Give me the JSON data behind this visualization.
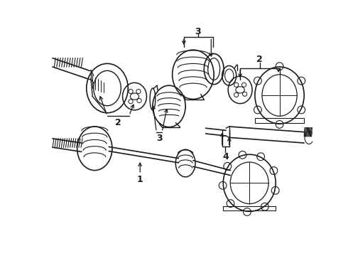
{
  "background_color": "#ffffff",
  "line_color": "#1a1a1a",
  "lw": 1.0,
  "fig_w": 4.9,
  "fig_h": 3.6,
  "dpi": 100,
  "xlim": [
    0,
    490
  ],
  "ylim": [
    0,
    360
  ]
}
